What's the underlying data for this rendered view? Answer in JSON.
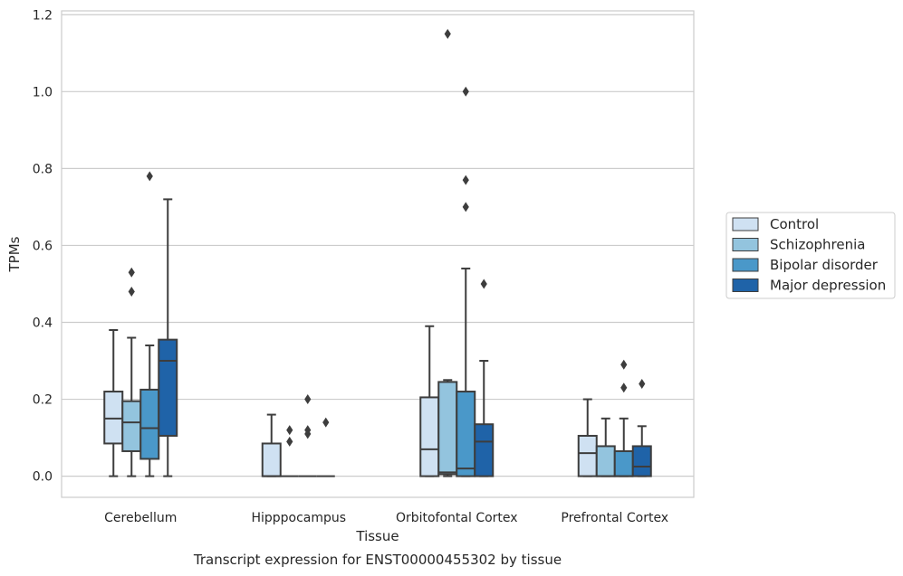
{
  "chart_data": {
    "type": "box",
    "title": "",
    "caption": "Transcript expression for ENST00000455302 by tissue",
    "xlabel": "Tissue",
    "ylabel": "TPMs",
    "ylim": [
      -0.055,
      1.21
    ],
    "yticks": [
      0.0,
      0.2,
      0.4,
      0.6,
      0.8,
      1.0,
      1.2
    ],
    "ytick_labels": [
      "0.0",
      "0.2",
      "0.4",
      "0.6",
      "0.8",
      "1.0",
      "1.2"
    ],
    "grid": "horizontal",
    "legend_position": "right",
    "categories": [
      "Cerebellum",
      "Hipppocampus",
      "Orbitofontal Cortex",
      "Prefrontal Cortex"
    ],
    "series": [
      {
        "name": "Control",
        "color": "#cfe1f2",
        "boxes": [
          {
            "whislo": 0.0,
            "q1": 0.085,
            "med": 0.15,
            "q3": 0.22,
            "whishi": 0.38,
            "fliers": []
          },
          {
            "whislo": 0.0,
            "q1": 0.0,
            "med": 0.0,
            "q3": 0.085,
            "whishi": 0.16,
            "fliers": []
          },
          {
            "whislo": 0.0,
            "q1": 0.0,
            "med": 0.07,
            "q3": 0.205,
            "whishi": 0.39,
            "fliers": []
          },
          {
            "whislo": 0.0,
            "q1": 0.0,
            "med": 0.06,
            "q3": 0.105,
            "whishi": 0.2,
            "fliers": []
          }
        ]
      },
      {
        "name": "Schizophrenia",
        "color": "#93c4de",
        "boxes": [
          {
            "whislo": 0.0,
            "q1": 0.065,
            "med": 0.14,
            "q3": 0.195,
            "whishi": 0.36,
            "fliers": [
              0.48,
              0.53
            ]
          },
          {
            "whislo": 0.0,
            "q1": 0.0,
            "med": 0.0,
            "q3": 0.0,
            "whishi": 0.0,
            "fliers": [
              0.09,
              0.12
            ]
          },
          {
            "whislo": 0.0,
            "q1": 0.005,
            "med": 0.01,
            "q3": 0.245,
            "whishi": 0.25,
            "fliers": [
              1.15
            ]
          },
          {
            "whislo": 0.0,
            "q1": 0.0,
            "med": 0.0,
            "q3": 0.078,
            "whishi": 0.15,
            "fliers": []
          }
        ]
      },
      {
        "name": "Bipolar disorder",
        "color": "#4a98c9",
        "boxes": [
          {
            "whislo": 0.0,
            "q1": 0.045,
            "med": 0.125,
            "q3": 0.225,
            "whishi": 0.34,
            "fliers": [
              0.78
            ]
          },
          {
            "whislo": 0.0,
            "q1": 0.0,
            "med": 0.0,
            "q3": 0.0,
            "whishi": 0.0,
            "fliers": [
              0.11,
              0.12,
              0.2
            ]
          },
          {
            "whislo": 0.0,
            "q1": 0.0,
            "med": 0.02,
            "q3": 0.22,
            "whishi": 0.54,
            "fliers": [
              0.7,
              0.77,
              1.0
            ]
          },
          {
            "whislo": 0.0,
            "q1": 0.0,
            "med": 0.0,
            "q3": 0.065,
            "whishi": 0.15,
            "fliers": [
              0.23,
              0.29
            ]
          }
        ]
      },
      {
        "name": "Major depression",
        "color": "#1f63a8",
        "boxes": [
          {
            "whislo": 0.0,
            "q1": 0.105,
            "med": 0.3,
            "q3": 0.355,
            "whishi": 0.72,
            "fliers": []
          },
          {
            "whislo": 0.0,
            "q1": 0.0,
            "med": 0.0,
            "q3": 0.0,
            "whishi": 0.0,
            "fliers": [
              0.14
            ]
          },
          {
            "whislo": 0.0,
            "q1": 0.0,
            "med": 0.09,
            "q3": 0.135,
            "whishi": 0.3,
            "fliers": [
              0.5
            ]
          },
          {
            "whislo": 0.0,
            "q1": 0.0,
            "med": 0.025,
            "q3": 0.078,
            "whishi": 0.13,
            "fliers": [
              0.24
            ]
          }
        ]
      }
    ]
  }
}
